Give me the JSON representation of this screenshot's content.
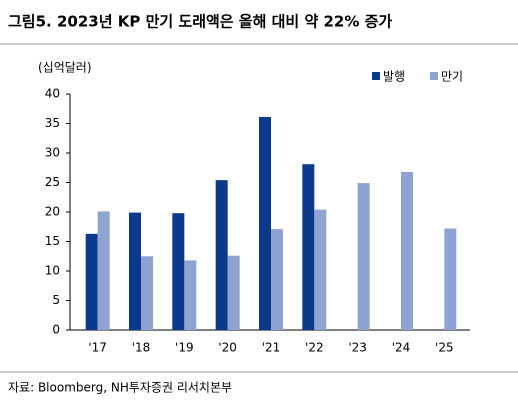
{
  "chart_data": {
    "type": "bar",
    "title": "그림5. 2023년 KP 만기 도래액은 올해 대비 약 22% 증가",
    "y_label": "(십억달러)",
    "source": "자료: Bloomberg, NH투자증권 리서치본부",
    "categories": [
      "'17",
      "'18",
      "'19",
      "'20",
      "'21",
      "'22",
      "'23",
      "'24",
      "'25"
    ],
    "series": [
      {
        "name": "발행",
        "color": "#0b3a8c",
        "values": [
          16.3,
          19.9,
          19.8,
          25.4,
          36.1,
          28.1,
          null,
          null,
          null
        ]
      },
      {
        "name": "만기",
        "color": "#8ea3d1",
        "values": [
          20.1,
          12.5,
          11.8,
          12.6,
          17.1,
          20.4,
          24.9,
          26.8,
          17.2
        ]
      }
    ],
    "ylim": [
      0,
      40
    ],
    "yticks": [
      0,
      5,
      10,
      15,
      20,
      25,
      30,
      35,
      40
    ],
    "legend": "top-right",
    "grid": false
  }
}
